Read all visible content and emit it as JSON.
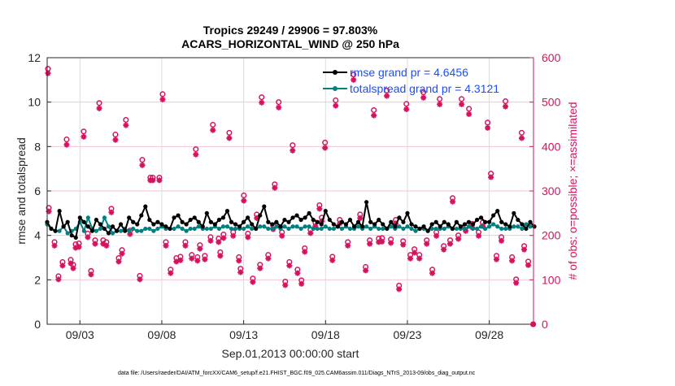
{
  "chart_data": {
    "type": "line",
    "title": [
      "Tropics 29249 / 29906 = 97.803%",
      "ACARS_HORIZONTAL_WIND @ 250 hPa"
    ],
    "xlabel": "Sep.01,2013 00:00:00 start",
    "ylabel": "rmse and totalspread",
    "ylabel_right": "# of obs: o=possible; ×=assimilated",
    "footer": "data file: /Users/raeder/DAI/ATM_forcXX/CAM6_setup/f.e21.FHIST_BGC.f09_025.CAM6assim.011/Diags_NTrS_2013-09/obs_diag_output.nc",
    "xlim": [
      0,
      29.7
    ],
    "ylim": [
      0,
      12
    ],
    "ylim_right": [
      0,
      600
    ],
    "x_ticks": [
      2,
      7,
      12,
      17,
      22,
      27
    ],
    "x_tick_labels": [
      "09/03",
      "09/08",
      "09/13",
      "09/18",
      "09/23",
      "09/28"
    ],
    "y_ticks": [
      0,
      2,
      4,
      6,
      8,
      10,
      12
    ],
    "y_tick_labels": [
      "0",
      "2",
      "4",
      "6",
      "8",
      "10",
      "12"
    ],
    "y_right_ticks": [
      0,
      100,
      200,
      300,
      400,
      500,
      600
    ],
    "y_right_tick_labels": [
      "0",
      "100",
      "200",
      "300",
      "400",
      "500",
      "600"
    ],
    "legend_placement": "top-right",
    "grid": true,
    "colors": {
      "rmse": "#000000",
      "spread": "#008080",
      "obs": "#d6125e",
      "legend_text": "#1a4dff",
      "grid_v": "#dcdcdc",
      "grid_h": "#f3c6d6"
    },
    "series": [
      {
        "name": "rmse grand pr = 4.6456",
        "key": "rmse",
        "x_step": 0.25,
        "values": [
          4.6,
          4.3,
          4.2,
          5.1,
          4.4,
          4.6,
          4.0,
          3.9,
          4.8,
          4.6,
          4.4,
          4.2,
          4.7,
          4.5,
          4.3,
          4.1,
          4.4,
          4.2,
          4.5,
          4.2,
          4.8,
          4.6,
          4.5,
          4.9,
          5.3,
          4.7,
          4.5,
          4.6,
          4.5,
          4.4,
          4.3,
          4.8,
          4.9,
          4.6,
          4.5,
          4.7,
          4.8,
          4.6,
          4.4,
          5.0,
          4.6,
          4.5,
          4.7,
          4.8,
          5.1,
          4.6,
          4.5,
          4.4,
          4.6,
          4.8,
          4.5,
          4.3,
          4.9,
          5.3,
          4.6,
          4.5,
          4.6,
          4.4,
          4.7,
          4.6,
          4.8,
          4.9,
          4.7,
          4.8,
          5.0,
          4.7,
          4.6,
          4.5,
          5.1,
          4.7,
          4.5,
          4.4,
          4.6,
          4.5,
          4.7,
          4.4,
          4.6,
          4.4,
          5.5,
          4.6,
          4.5,
          4.7,
          4.5,
          4.3,
          4.6,
          4.4,
          4.8,
          4.6,
          5.0,
          4.5,
          4.4,
          4.3,
          4.4,
          4.2,
          4.5,
          4.6,
          4.4,
          4.6,
          4.5,
          4.3,
          4.6,
          4.4,
          4.5,
          4.6,
          4.5,
          4.7,
          4.8,
          4.6,
          4.6,
          4.9,
          5.1,
          4.6,
          4.5,
          4.4,
          5.0,
          4.7,
          4.5,
          4.3,
          4.6,
          4.4
        ]
      },
      {
        "name": "totalspread grand pr = 4.3121",
        "key": "spread",
        "x_step": 0.25,
        "values": [
          4.5,
          4.3,
          4.2,
          4.2,
          4.4,
          4.1,
          4.2,
          4.3,
          4.6,
          4.2,
          4.8,
          4.3,
          4.2,
          4.3,
          4.8,
          4.4,
          4.1,
          4.2,
          4.2,
          4.3,
          4.2,
          4.3,
          4.2,
          4.2,
          4.3,
          4.3,
          4.2,
          4.3,
          4.4,
          4.3,
          4.3,
          4.3,
          4.4,
          4.3,
          4.2,
          4.3,
          4.3,
          4.4,
          4.3,
          4.3,
          4.3,
          4.4,
          4.3,
          4.4,
          4.4,
          4.3,
          4.3,
          4.3,
          4.3,
          4.4,
          4.3,
          4.3,
          4.4,
          4.4,
          4.3,
          4.3,
          4.4,
          4.3,
          4.4,
          4.3,
          4.4,
          4.4,
          4.3,
          4.4,
          4.4,
          4.3,
          4.3,
          4.3,
          4.4,
          4.3,
          4.3,
          4.4,
          4.3,
          4.4,
          4.3,
          4.3,
          4.4,
          4.3,
          4.4,
          4.3,
          4.4,
          4.3,
          4.3,
          4.3,
          4.4,
          4.3,
          4.4,
          4.3,
          4.4,
          4.3,
          4.2,
          4.3,
          4.3,
          4.2,
          4.3,
          4.3,
          4.3,
          4.3,
          4.4,
          4.3,
          4.3,
          4.3,
          4.3,
          4.4,
          4.3,
          4.3,
          4.4,
          4.3,
          4.4,
          4.5,
          4.4,
          4.3,
          4.3,
          4.3,
          4.4,
          4.4,
          4.3,
          4.5,
          4.4,
          4.4
        ]
      }
    ],
    "obs": {
      "x": [
        0.05,
        0.1,
        0.45,
        0.69,
        0.94,
        1.19,
        1.44,
        1.59,
        1.74,
        1.94,
        2.23,
        2.48,
        2.68,
        2.93,
        3.18,
        3.42,
        3.62,
        3.92,
        4.17,
        4.37,
        4.57,
        4.81,
        5.06,
        5.66,
        5.81,
        6.3,
        6.45,
        6.85,
        7.05,
        7.25,
        7.54,
        7.89,
        8.14,
        8.44,
        8.83,
        9.08,
        9.18,
        9.33,
        9.63,
        9.98,
        10.12,
        10.47,
        10.57,
        10.77,
        11.12,
        11.36,
        11.71,
        11.81,
        12.01,
        12.26,
        12.56,
        12.8,
        13.0,
        13.1,
        13.5,
        13.8,
        13.9,
        14.14,
        14.34,
        14.54,
        14.79,
        14.99,
        15.29,
        15.53,
        15.73,
        16.08,
        16.38,
        16.63,
        16.77,
        16.97,
        17.42,
        17.62,
        17.87,
        18.36,
        18.71,
        19.11,
        19.45,
        19.7,
        19.95,
        20.25,
        20.45,
        20.74,
        20.99,
        21.29,
        21.49,
        21.74,
        21.94,
        22.18,
        22.43,
        22.73,
        22.98,
        23.18,
        23.52,
        23.77,
        23.97,
        24.22,
        24.61,
        24.76,
        25.11,
        25.31,
        25.56,
        25.76,
        25.96,
        26.35,
        26.6,
        26.9,
        27.1,
        27.44,
        27.74,
        27.99,
        28.39,
        28.64,
        28.98,
        29.13,
        29.38,
        29.68
      ],
      "assimilated": [
        565,
        254,
        177,
        101,
        132,
        404,
        137,
        126,
        172,
        174,
        422,
        196,
        112,
        181,
        486,
        181,
        177,
        252,
        415,
        141,
        159,
        448,
        203,
        101,
        358,
        324,
        324,
        324,
        506,
        177,
        115,
        141,
        144,
        177,
        148,
        382,
        143,
        170,
        146,
        188,
        437,
        185,
        154,
        194,
        419,
        199,
        143,
        117,
        278,
        196,
        95,
        239,
        126,
        499,
        148,
        214,
        307,
        488,
        199,
        88,
        132,
        391,
        115,
        91,
        163,
        205,
        221,
        260,
        232,
        397,
        144,
        492,
        227,
        177,
        550,
        239,
        121,
        181,
        470,
        185,
        186,
        514,
        183,
        227,
        79,
        179,
        484,
        148,
        161,
        148,
        510,
        181,
        115,
        199,
        495,
        168,
        181,
        276,
        192,
        495,
        210,
        473,
        218,
        199,
        221,
        442,
        331,
        146,
        188,
        490,
        143,
        93,
        419,
        168,
        133,
        0
      ],
      "possible": [
        575,
        262,
        185,
        108,
        140,
        416,
        145,
        134,
        180,
        182,
        434,
        204,
        120,
        189,
        498,
        189,
        185,
        260,
        427,
        149,
        167,
        460,
        211,
        109,
        370,
        330,
        330,
        330,
        518,
        185,
        123,
        149,
        152,
        185,
        156,
        394,
        151,
        178,
        154,
        196,
        449,
        193,
        162,
        202,
        431,
        207,
        151,
        125,
        290,
        204,
        103,
        247,
        134,
        511,
        156,
        222,
        315,
        500,
        207,
        96,
        140,
        403,
        123,
        99,
        171,
        213,
        229,
        268,
        240,
        409,
        152,
        504,
        235,
        185,
        562,
        247,
        129,
        189,
        482,
        193,
        194,
        526,
        191,
        235,
        87,
        187,
        496,
        156,
        169,
        156,
        522,
        189,
        123,
        207,
        507,
        176,
        189,
        284,
        200,
        507,
        218,
        485,
        226,
        207,
        229,
        454,
        339,
        154,
        196,
        502,
        151,
        101,
        431,
        176,
        141,
        0
      ]
    }
  }
}
